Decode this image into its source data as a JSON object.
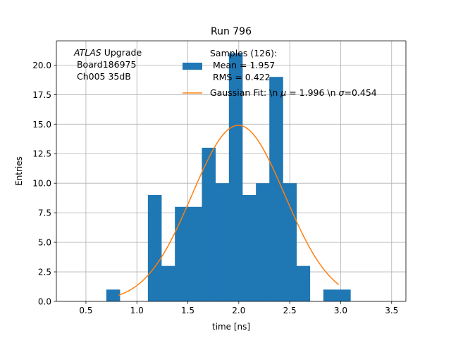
{
  "chart_data": {
    "type": "bar",
    "title": "Run 796",
    "xlabel": "time [ns]",
    "ylabel": "Entries",
    "xlim": [
      0.21,
      3.64
    ],
    "ylim": [
      0,
      22.05
    ],
    "grid": true,
    "xticks": [
      0.5,
      1.0,
      1.5,
      2.0,
      2.5,
      3.0,
      3.5
    ],
    "xtick_labels": [
      "0.5",
      "1.0",
      "1.5",
      "2.0",
      "2.5",
      "3.0",
      "3.5"
    ],
    "yticks": [
      0.0,
      2.5,
      5.0,
      7.5,
      10.0,
      12.5,
      15.0,
      17.5,
      20.0
    ],
    "ytick_labels": [
      "0.0",
      "2.5",
      "5.0",
      "7.5",
      "10.0",
      "12.5",
      "15.0",
      "17.5",
      "20.0"
    ],
    "histogram": {
      "name": "Samples (126)",
      "color": "#1f77b4",
      "bin_width": 0.1325,
      "bins": [
        {
          "x0": 0.7,
          "value": 1
        },
        {
          "x0": 1.108,
          "value": 9
        },
        {
          "x0": 1.24,
          "value": 3
        },
        {
          "x0": 1.373,
          "value": 8
        },
        {
          "x0": 1.505,
          "value": 8
        },
        {
          "x0": 1.638,
          "value": 13
        },
        {
          "x0": 1.77,
          "value": 10
        },
        {
          "x0": 1.903,
          "value": 21
        },
        {
          "x0": 2.035,
          "value": 9
        },
        {
          "x0": 2.168,
          "value": 10
        },
        {
          "x0": 2.3,
          "value": 19
        },
        {
          "x0": 2.433,
          "value": 10
        },
        {
          "x0": 2.565,
          "value": 3
        },
        {
          "x0": 2.83,
          "value": 1
        },
        {
          "x0": 2.963,
          "value": 1
        }
      ]
    },
    "gaussian": {
      "color": "#ff7f0e",
      "amplitude": 14.9,
      "mu": 1.996,
      "sigma": 0.454,
      "x_start": 0.82,
      "x_end": 2.98
    },
    "legend": {
      "position": "top-center",
      "hist_lines": [
        "Samples (126):",
        " Mean = 1.957",
        " RMS = 0.422"
      ],
      "fit_prefix": "Gaussian Fit: \\n ",
      "fit_mu_symbol": "μ",
      "fit_middle": " = 1.996 \\n ",
      "fit_sigma_symbol": "σ",
      "fit_suffix": "=0.454"
    },
    "annotation": {
      "italic": "ATLAS",
      "rest": " Upgrade",
      "line2": " Board186975",
      "line3": " Ch005 35dB"
    }
  }
}
